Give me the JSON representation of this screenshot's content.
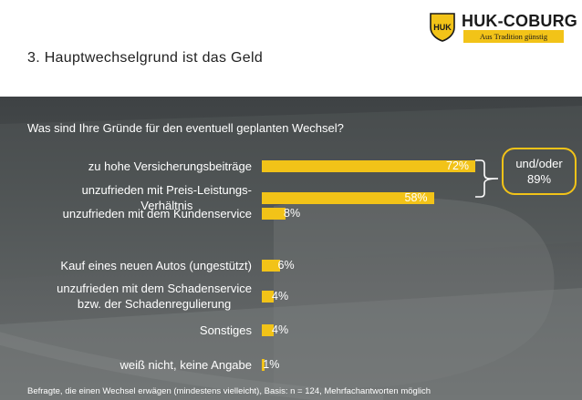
{
  "header": {
    "title": "3. Hauptwechselgrund ist das Geld",
    "logo": {
      "brand": "HUK-COBURG",
      "tagline": "Aus Tradition günstig",
      "shield_text": "HUK",
      "icon": "shield-logo-icon"
    }
  },
  "colors": {
    "accent": "#f2c318",
    "text_light": "#ffffff",
    "title": "#222222"
  },
  "question": "Was sind Ihre Gründe für den eventuell geplanten Wechsel?",
  "chart_data": {
    "type": "bar",
    "orientation": "horizontal",
    "categories": [
      [
        "zu hohe Versicherungsbeiträge"
      ],
      [
        "unzufrieden mit Preis-Leistungs-",
        "Verhältnis"
      ],
      [
        "unzufrieden mit dem Kundenservice"
      ],
      [
        "Kauf eines neuen Autos (ungestützt)"
      ],
      [
        "unzufrieden mit dem Schadenservice",
        "bzw. der Schadenregulierung"
      ],
      [
        "Sonstiges"
      ],
      [
        "weiß nicht, keine Angabe"
      ]
    ],
    "values": [
      72,
      58,
      8,
      6,
      4,
      4,
      1
    ],
    "value_labels": [
      "72%",
      "58%",
      "8%",
      "6%",
      "4%",
      "4%",
      "1%"
    ],
    "xlim": [
      0,
      100
    ],
    "grid": false,
    "legend": "none",
    "annotation": {
      "lines": [
        "und/oder",
        "89%"
      ],
      "applies_to": [
        0,
        1
      ]
    }
  },
  "footnote": "Befragte, die einen Wechsel erwägen (mindestens vielleicht), Basis: n = 124, Mehrfachantworten möglich"
}
